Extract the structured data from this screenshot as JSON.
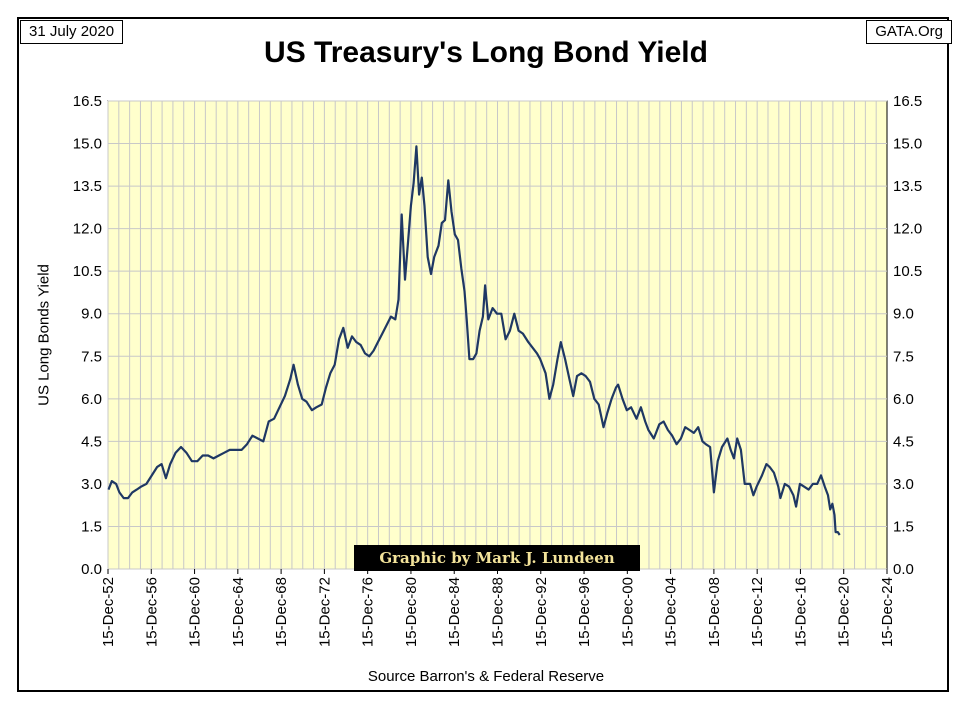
{
  "header": {
    "date": "31 July 2020",
    "site": "GATA.Org",
    "title": "US Treasury's Long Bond Yield"
  },
  "credit": "Graphic by Mark J. Lundeen",
  "source": "Source Barron's & Federal Reserve",
  "colors": {
    "plot_bg": "#ffffcc",
    "line": "#1f3864",
    "grid": "#c8c8c8",
    "credit_text": "#f3e39a"
  },
  "chart_data": {
    "type": "line",
    "title": "US Treasury's Long Bond Yield",
    "xlabel": "",
    "ylabel": "US Long Bonds Yield",
    "xlim": [
      1952.95,
      2024.95
    ],
    "ylim": [
      0,
      16.5
    ],
    "y_ticks": [
      "0.0",
      "1.5",
      "3.0",
      "4.5",
      "6.0",
      "7.5",
      "9.0",
      "10.5",
      "12.0",
      "13.5",
      "15.0",
      "16.5"
    ],
    "x_ticks": [
      "15-Dec-52",
      "15-Dec-56",
      "15-Dec-60",
      "15-Dec-64",
      "15-Dec-68",
      "15-Dec-72",
      "15-Dec-76",
      "15-Dec-80",
      "15-Dec-84",
      "15-Dec-88",
      "15-Dec-92",
      "15-Dec-96",
      "15-Dec-00",
      "15-Dec-04",
      "15-Dec-08",
      "15-Dec-12",
      "15-Dec-16",
      "15-Dec-20",
      "15-Dec-24"
    ],
    "grid": true,
    "right_axis": true,
    "series": [
      {
        "points": [
          [
            1953.0,
            2.8
          ],
          [
            1953.3,
            3.1
          ],
          [
            1953.7,
            3.0
          ],
          [
            1954.0,
            2.7
          ],
          [
            1954.4,
            2.5
          ],
          [
            1954.8,
            2.5
          ],
          [
            1955.2,
            2.7
          ],
          [
            1955.6,
            2.8
          ],
          [
            1956.0,
            2.9
          ],
          [
            1956.5,
            3.0
          ],
          [
            1957.0,
            3.3
          ],
          [
            1957.5,
            3.6
          ],
          [
            1957.9,
            3.7
          ],
          [
            1958.3,
            3.2
          ],
          [
            1958.7,
            3.7
          ],
          [
            1959.2,
            4.1
          ],
          [
            1959.7,
            4.3
          ],
          [
            1960.2,
            4.1
          ],
          [
            1960.7,
            3.8
          ],
          [
            1961.2,
            3.8
          ],
          [
            1961.7,
            4.0
          ],
          [
            1962.2,
            4.0
          ],
          [
            1962.7,
            3.9
          ],
          [
            1963.2,
            4.0
          ],
          [
            1963.7,
            4.1
          ],
          [
            1964.2,
            4.2
          ],
          [
            1964.7,
            4.2
          ],
          [
            1965.3,
            4.2
          ],
          [
            1965.8,
            4.4
          ],
          [
            1966.3,
            4.7
          ],
          [
            1966.8,
            4.6
          ],
          [
            1967.3,
            4.5
          ],
          [
            1967.8,
            5.2
          ],
          [
            1968.3,
            5.3
          ],
          [
            1968.8,
            5.7
          ],
          [
            1969.3,
            6.1
          ],
          [
            1969.8,
            6.7
          ],
          [
            1970.1,
            7.2
          ],
          [
            1970.5,
            6.5
          ],
          [
            1970.9,
            6.0
          ],
          [
            1971.3,
            5.9
          ],
          [
            1971.8,
            5.6
          ],
          [
            1972.2,
            5.7
          ],
          [
            1972.7,
            5.8
          ],
          [
            1973.1,
            6.4
          ],
          [
            1973.5,
            6.9
          ],
          [
            1973.9,
            7.2
          ],
          [
            1974.3,
            8.1
          ],
          [
            1974.7,
            8.5
          ],
          [
            1975.1,
            7.8
          ],
          [
            1975.5,
            8.2
          ],
          [
            1975.9,
            8.0
          ],
          [
            1976.3,
            7.9
          ],
          [
            1976.7,
            7.6
          ],
          [
            1977.1,
            7.5
          ],
          [
            1977.5,
            7.7
          ],
          [
            1977.9,
            8.0
          ],
          [
            1978.3,
            8.3
          ],
          [
            1978.7,
            8.6
          ],
          [
            1979.1,
            8.9
          ],
          [
            1979.5,
            8.8
          ],
          [
            1979.8,
            9.5
          ],
          [
            1980.1,
            12.5
          ],
          [
            1980.4,
            10.2
          ],
          [
            1980.7,
            11.6
          ],
          [
            1980.95,
            12.8
          ],
          [
            1981.2,
            13.6
          ],
          [
            1981.45,
            14.9
          ],
          [
            1981.7,
            13.2
          ],
          [
            1981.95,
            13.8
          ],
          [
            1982.2,
            12.8
          ],
          [
            1982.5,
            11.0
          ],
          [
            1982.8,
            10.4
          ],
          [
            1983.1,
            11.0
          ],
          [
            1983.5,
            11.4
          ],
          [
            1983.8,
            12.2
          ],
          [
            1984.1,
            12.3
          ],
          [
            1984.4,
            13.7
          ],
          [
            1984.7,
            12.6
          ],
          [
            1985.0,
            11.8
          ],
          [
            1985.3,
            11.6
          ],
          [
            1985.6,
            10.6
          ],
          [
            1985.9,
            9.8
          ],
          [
            1986.1,
            8.8
          ],
          [
            1986.35,
            7.4
          ],
          [
            1986.7,
            7.4
          ],
          [
            1987.0,
            7.6
          ],
          [
            1987.3,
            8.4
          ],
          [
            1987.6,
            8.9
          ],
          [
            1987.8,
            10.0
          ],
          [
            1988.1,
            8.8
          ],
          [
            1988.5,
            9.2
          ],
          [
            1988.9,
            9.0
          ],
          [
            1989.3,
            9.0
          ],
          [
            1989.7,
            8.1
          ],
          [
            1990.1,
            8.4
          ],
          [
            1990.5,
            9.0
          ],
          [
            1990.9,
            8.4
          ],
          [
            1991.3,
            8.3
          ],
          [
            1991.8,
            8.0
          ],
          [
            1992.2,
            7.8
          ],
          [
            1992.6,
            7.6
          ],
          [
            1992.9,
            7.4
          ],
          [
            1993.4,
            6.9
          ],
          [
            1993.75,
            6.0
          ],
          [
            1994.1,
            6.5
          ],
          [
            1994.5,
            7.4
          ],
          [
            1994.8,
            8.0
          ],
          [
            1995.2,
            7.4
          ],
          [
            1995.6,
            6.7
          ],
          [
            1995.95,
            6.1
          ],
          [
            1996.3,
            6.8
          ],
          [
            1996.7,
            6.9
          ],
          [
            1997.1,
            6.8
          ],
          [
            1997.5,
            6.6
          ],
          [
            1997.9,
            6.0
          ],
          [
            1998.3,
            5.8
          ],
          [
            1998.75,
            5.0
          ],
          [
            1999.1,
            5.5
          ],
          [
            1999.5,
            6.0
          ],
          [
            1999.9,
            6.4
          ],
          [
            2000.1,
            6.5
          ],
          [
            2000.5,
            6.0
          ],
          [
            2000.9,
            5.6
          ],
          [
            2001.3,
            5.7
          ],
          [
            2001.8,
            5.3
          ],
          [
            2002.2,
            5.7
          ],
          [
            2002.6,
            5.2
          ],
          [
            2002.9,
            4.9
          ],
          [
            2003.4,
            4.6
          ],
          [
            2003.6,
            4.8
          ],
          [
            2003.9,
            5.1
          ],
          [
            2004.3,
            5.2
          ],
          [
            2004.7,
            4.9
          ],
          [
            2005.1,
            4.7
          ],
          [
            2005.5,
            4.4
          ],
          [
            2005.9,
            4.6
          ],
          [
            2006.3,
            5.0
          ],
          [
            2006.7,
            4.9
          ],
          [
            2007.1,
            4.8
          ],
          [
            2007.5,
            5.0
          ],
          [
            2007.9,
            4.5
          ],
          [
            2008.2,
            4.4
          ],
          [
            2008.6,
            4.3
          ],
          [
            2008.95,
            2.7
          ],
          [
            2009.3,
            3.8
          ],
          [
            2009.7,
            4.3
          ],
          [
            2010.2,
            4.6
          ],
          [
            2010.5,
            4.2
          ],
          [
            2010.8,
            3.9
          ],
          [
            2011.1,
            4.6
          ],
          [
            2011.45,
            4.2
          ],
          [
            2011.8,
            3.0
          ],
          [
            2012.3,
            3.0
          ],
          [
            2012.6,
            2.6
          ],
          [
            2012.9,
            2.9
          ],
          [
            2013.4,
            3.3
          ],
          [
            2013.8,
            3.7
          ],
          [
            2014.1,
            3.6
          ],
          [
            2014.5,
            3.4
          ],
          [
            2014.9,
            2.9
          ],
          [
            2015.1,
            2.5
          ],
          [
            2015.5,
            3.0
          ],
          [
            2015.9,
            2.9
          ],
          [
            2016.3,
            2.6
          ],
          [
            2016.55,
            2.2
          ],
          [
            2016.9,
            3.0
          ],
          [
            2017.3,
            2.9
          ],
          [
            2017.7,
            2.8
          ],
          [
            2018.1,
            3.0
          ],
          [
            2018.5,
            3.0
          ],
          [
            2018.85,
            3.3
          ],
          [
            2019.2,
            2.9
          ],
          [
            2019.5,
            2.6
          ],
          [
            2019.7,
            2.1
          ],
          [
            2019.9,
            2.3
          ],
          [
            2020.1,
            1.9
          ],
          [
            2020.2,
            1.3
          ],
          [
            2020.4,
            1.3
          ],
          [
            2020.58,
            1.2
          ]
        ]
      }
    ]
  }
}
